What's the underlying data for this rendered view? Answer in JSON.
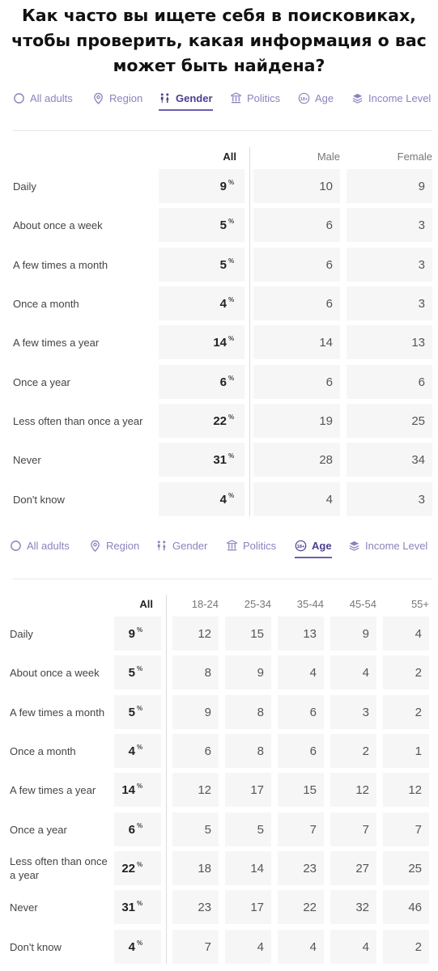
{
  "title": "Как часто вы ищете себя в поисковиках, чтобы проверить, какая информация о вас может быть найдена?",
  "tabs": [
    {
      "label": "All adults",
      "icon": "circle-icon"
    },
    {
      "label": "Region",
      "icon": "location-pin-icon"
    },
    {
      "label": "Gender",
      "icon": "gender-icon"
    },
    {
      "label": "Politics",
      "icon": "pillar-icon"
    },
    {
      "label": "Age",
      "icon": "age-18-plus-icon"
    },
    {
      "label": "Income Level",
      "icon": "stack-icon"
    }
  ],
  "pct_symbol": "%",
  "gender_table": {
    "active_tab": "Gender",
    "columns": [
      "All",
      "Male",
      "Female"
    ],
    "rows": [
      {
        "label": "Daily",
        "all": "9",
        "values": [
          "10",
          "9"
        ]
      },
      {
        "label": "About once a week",
        "all": "5",
        "values": [
          "6",
          "3"
        ]
      },
      {
        "label": "A few times a month",
        "all": "5",
        "values": [
          "6",
          "3"
        ]
      },
      {
        "label": "Once a month",
        "all": "4",
        "values": [
          "6",
          "3"
        ]
      },
      {
        "label": "A few times a year",
        "all": "14",
        "values": [
          "14",
          "13"
        ]
      },
      {
        "label": "Once a year",
        "all": "6",
        "values": [
          "6",
          "6"
        ]
      },
      {
        "label": "Less often than once a year",
        "all": "22",
        "values": [
          "19",
          "25"
        ]
      },
      {
        "label": "Never",
        "all": "31",
        "values": [
          "28",
          "34"
        ]
      },
      {
        "label": "Don't know",
        "all": "4",
        "values": [
          "4",
          "3"
        ]
      }
    ]
  },
  "age_table": {
    "active_tab": "Age",
    "columns": [
      "All",
      "18-24",
      "25-34",
      "35-44",
      "45-54",
      "55+"
    ],
    "rows": [
      {
        "label": "Daily",
        "all": "9",
        "values": [
          "12",
          "15",
          "13",
          "9",
          "4"
        ]
      },
      {
        "label": "About once a week",
        "all": "5",
        "values": [
          "8",
          "9",
          "4",
          "4",
          "2"
        ]
      },
      {
        "label": "A few times a month",
        "all": "5",
        "values": [
          "9",
          "8",
          "6",
          "3",
          "2"
        ]
      },
      {
        "label": "Once a month",
        "all": "4",
        "values": [
          "6",
          "8",
          "6",
          "2",
          "1"
        ]
      },
      {
        "label": "A few times a year",
        "all": "14",
        "values": [
          "12",
          "17",
          "15",
          "12",
          "12"
        ]
      },
      {
        "label": "Once a year",
        "all": "6",
        "values": [
          "5",
          "5",
          "7",
          "7",
          "7"
        ]
      },
      {
        "label": "Less often than once a year",
        "all": "22",
        "values": [
          "18",
          "14",
          "23",
          "27",
          "25"
        ]
      },
      {
        "label": "Never",
        "all": "31",
        "values": [
          "23",
          "17",
          "22",
          "32",
          "46"
        ]
      },
      {
        "label": "Don't know",
        "all": "4",
        "values": [
          "7",
          "4",
          "4",
          "4",
          "2"
        ]
      }
    ]
  }
}
